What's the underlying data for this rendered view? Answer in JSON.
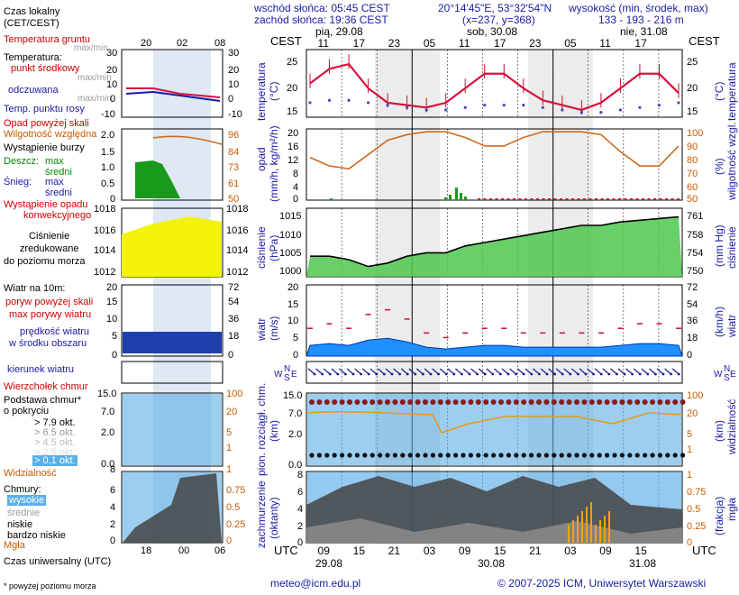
{
  "header": {
    "sunrise": "wschód słońca: 05:45 CEST",
    "sunset": "zachód słońca: 19:36 CEST",
    "coords": "20°14'45\"E, 53°32'54\"N",
    "grid": "(x=237, y=368)",
    "elevation_title": "wysokość (min, środek, max)",
    "elevation_values": "133 - 193 - 216 m"
  },
  "legend": {
    "local_time": "Czas lokalny",
    "local_time_sub": "(CET/CEST)",
    "soil_temp": "Temperatura gruntu",
    "max_min": "max/min",
    "temperature": "Temperatura:",
    "mid_point": "punkt środkowy",
    "max_min2": "max/min",
    "felt": "odczuwana",
    "max_min3": "max/min",
    "dew_point": "Temp. punktu rosy",
    "precip_above": "Opad powyżej skali",
    "humidity": "Wilgotność względna",
    "storm": "Wystąpienie burzy",
    "rain": "Deszcz:",
    "rain_max": "max",
    "rain_avg": "średni",
    "snow": "Śnieg:",
    "snow_max": "max",
    "snow_avg": "średni",
    "conv_precip1": "Wystąpienie opadu",
    "conv_precip2": "konwekcyjnego",
    "pressure1": "Ciśnienie",
    "pressure2": "zredukowane",
    "pressure3": "do poziomu morza",
    "wind": "Wiatr na 10m:",
    "gusts_above": "poryw powyżej skali",
    "max_gusts": "max porywy wiatru",
    "wind_speed1": "prędkość wiatru",
    "wind_speed2": "w środku obszaru",
    "wind_dir": "kierunek wiatru",
    "wind_peak": "Wierzchołek chmur",
    "cloud_base1": "Podstawa chmur*",
    "cloud_base2": "o pokryciu",
    "okt79": "> 7.9 okt.",
    "okt65": "> 6.5 okt.",
    "okt45": "> 4.5 okt.",
    "okt25": "> 2.5 okt.",
    "okt01": "> 0.1 okt.",
    "visibility": "Widzialność",
    "clouds": "Chmury:",
    "high": "wysokie",
    "mid": "średnie",
    "low": "niskie",
    "very_low": "bardzo niskie",
    "fog": "Mgła",
    "utc_label": "Czas uniwersalny (UTC)",
    "footnote": "* powyżej poziomu morza"
  },
  "legend_axes": {
    "top_ticks": [
      "20",
      "02",
      "08"
    ],
    "bottom_ticks": [
      "18",
      "00",
      "06"
    ],
    "temp_left": [
      "30",
      "20",
      "10",
      "0",
      "-10"
    ],
    "temp_right": [
      "30",
      "20",
      "10",
      "0",
      "-10"
    ],
    "prec_left": [
      "2.0",
      "1.5",
      "1.0",
      "0.5",
      "0"
    ],
    "prec_right": [
      "96",
      "84",
      "73",
      "61",
      "50"
    ],
    "pres_left": [
      "1018",
      "1016",
      "1014",
      "1012"
    ],
    "pres_right": [
      "1018",
      "1016",
      "1014",
      "1012"
    ],
    "wind_left": [
      "20",
      "15",
      "10",
      "5",
      "0"
    ],
    "wind_right": [
      "72",
      "54",
      "36",
      "18",
      "0"
    ],
    "cb_left": [
      "15.0",
      "7.0",
      "2.0",
      "0.0"
    ],
    "cb_right": [
      "100",
      "20",
      "5",
      "1"
    ],
    "cl_left": [
      "8",
      "6",
      "4",
      "2",
      "0"
    ],
    "cl_right": [
      "1",
      "0.75",
      "0.5",
      "0.25",
      "0"
    ]
  },
  "main_axes": {
    "cest": "CEST",
    "utc": "UTC",
    "days_top": [
      "pią, 29.08",
      "sob, 30.08",
      "nie, 31.08"
    ],
    "hours_top": [
      "11",
      "17",
      "23",
      "05",
      "11",
      "17",
      "23",
      "05",
      "11",
      "17"
    ],
    "hours_bottom": [
      "09",
      "15",
      "21",
      "03",
      "09",
      "15",
      "21",
      "03",
      "09",
      "15"
    ],
    "days_bottom": [
      "29.08",
      "30.08",
      "31.08"
    ],
    "temp_ticks": [
      "25",
      "20",
      "15"
    ],
    "prec_ticks": [
      "20",
      "16",
      "12",
      "8",
      "4",
      "0"
    ],
    "hum_ticks": [
      "100",
      "90",
      "80",
      "70",
      "60",
      "50"
    ],
    "pres_ticks": [
      "1015",
      "1010",
      "1005",
      "1000"
    ],
    "pres_mmhg_ticks": [
      "761",
      "758",
      "754",
      "750"
    ],
    "wind_ms_ticks": [
      "20",
      "15",
      "10",
      "5",
      "0"
    ],
    "wind_kmh_ticks": [
      "72",
      "54",
      "36",
      "18",
      "0"
    ],
    "cb_ticks": [
      "15.0",
      "7.0",
      "2.0",
      "0.0"
    ],
    "vis_ticks": [
      "100",
      "20",
      "5",
      "1"
    ],
    "cl_ticks": [
      "8",
      "6",
      "4",
      "2",
      "0"
    ],
    "fog_ticks": [
      "1",
      "0.75",
      "0.5",
      "0.25",
      "0"
    ],
    "wind_dir_letters": [
      "N",
      "W",
      "E",
      "S"
    ]
  },
  "panel_labels": {
    "temp_left": "temperatura",
    "temp_left_unit": "(°C)",
    "temp_right_unit": "(°C)",
    "temp_right": "temperatura",
    "prec_left": "opad",
    "prec_left_unit": "(mm/h, kg/m²/h)",
    "hum_right_unit": "(%)",
    "hum_right": "wilgotność wzgl.",
    "pres_left": "ciśnienie",
    "pres_left_unit": "(hPa)",
    "pres_right_unit": "(mm Hg)",
    "pres_right": "ciśnienie",
    "wind_left": "wiatr",
    "wind_left_unit": "(m/s)",
    "wind_right_unit": "(km/h)",
    "wind_right": "wiatr",
    "cb_left": "pion. rozciągł. chm.",
    "cb_left_unit": "(km)",
    "vis_right_unit": "(km)",
    "vis_right": "widzialność",
    "cl_left": "zachmurzenie",
    "cl_left_unit": "(oktanty)",
    "fog_right_unit": "(frakcja)",
    "fog_right": "mgła"
  },
  "footer": {
    "email": "meteo@icm.edu.pl",
    "copyright": "© 2007-2025 ICM, Uniwersytet Warszawski"
  },
  "chart_data": [
    {
      "type": "line",
      "name": "temperature",
      "x": [
        "29.08 09",
        "29.08 12",
        "29.08 15",
        "29.08 18",
        "29.08 21",
        "30.08 00",
        "30.08 03",
        "30.08 06",
        "30.08 09",
        "30.08 12",
        "30.08 15",
        "30.08 18",
        "30.08 21",
        "31.08 00",
        "31.08 03",
        "31.08 06",
        "31.08 09",
        "31.08 12",
        "31.08 15",
        "31.08 18"
      ],
      "series": [
        {
          "values": [
            20,
            23,
            24,
            19,
            16,
            15.5,
            15,
            16,
            19,
            22,
            22,
            19,
            16.5,
            15.5,
            14.5,
            16,
            19,
            22,
            22,
            18
          ]
        },
        {
          "values": [
            16,
            16.5,
            16.5,
            16,
            15.5,
            15,
            14.5,
            14.5,
            15,
            15.5,
            15.5,
            15.5,
            15,
            14.5,
            14,
            14,
            14.5,
            15,
            15.5,
            16
          ]
        }
      ],
      "ylim": [
        13,
        27
      ]
    },
    {
      "type": "line",
      "name": "relative humidity",
      "x": [
        "29.08 09",
        "29.08 12",
        "29.08 15",
        "29.08 18",
        "29.08 21",
        "30.08 00",
        "30.08 03",
        "30.08 06",
        "30.08 09",
        "30.08 12",
        "30.08 15",
        "30.08 18",
        "30.08 21",
        "31.08 00",
        "31.08 03",
        "31.08 06",
        "31.08 09",
        "31.08 12",
        "31.08 15",
        "31.08 18"
      ],
      "values": [
        80,
        74,
        72,
        82,
        92,
        96,
        98,
        98,
        94,
        88,
        88,
        94,
        98,
        98,
        98,
        96,
        84,
        74,
        74,
        88
      ],
      "ylim": [
        50,
        100
      ]
    },
    {
      "type": "area",
      "name": "pressure",
      "x": [
        "29.08 09",
        "29.08 12",
        "29.08 15",
        "29.08 18",
        "29.08 21",
        "30.08 00",
        "30.08 03",
        "30.08 06",
        "30.08 09",
        "30.08 12",
        "30.08 15",
        "30.08 18",
        "30.08 21",
        "31.08 00",
        "31.08 03",
        "31.08 06",
        "31.08 09",
        "31.08 12",
        "31.08 15",
        "31.08 18"
      ],
      "values": [
        1003,
        1003,
        1002,
        1000,
        1001,
        1003,
        1004,
        1004,
        1006,
        1007,
        1008,
        1009,
        1010,
        1011,
        1012,
        1012,
        1013,
        1013.5,
        1014,
        1014.5
      ],
      "ylim": [
        997,
        1017
      ]
    },
    {
      "type": "area",
      "name": "wind speed",
      "x": [
        "29.08 09",
        "29.08 12",
        "29.08 15",
        "29.08 18",
        "29.08 21",
        "30.08 00",
        "30.08 03",
        "30.08 06",
        "30.08 09",
        "30.08 12",
        "30.08 15",
        "30.08 18",
        "30.08 21",
        "31.08 00",
        "31.08 03",
        "31.08 06",
        "31.08 09",
        "31.08 12",
        "31.08 15",
        "31.08 18"
      ],
      "values": [
        3,
        3.5,
        3,
        4.5,
        5,
        4,
        2.5,
        2,
        2.5,
        3,
        3,
        2.5,
        2.5,
        2.5,
        2.5,
        2.5,
        3,
        3.5,
        3.5,
        3
      ],
      "ylim": [
        0,
        20
      ]
    }
  ]
}
